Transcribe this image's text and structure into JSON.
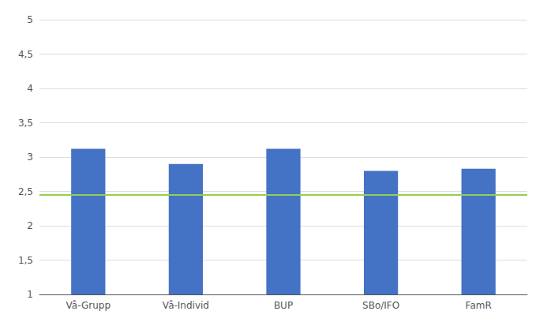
{
  "chart_data": {
    "type": "bar",
    "categories": [
      "Vå-Grupp",
      "Vå-Individ",
      "BUP",
      "SBo/IFO",
      "FamR"
    ],
    "values": [
      3.12,
      2.9,
      3.12,
      2.8,
      2.83
    ],
    "color": "#4472C4",
    "reference_line": {
      "y": 2.45,
      "color": "#92D050"
    },
    "ylim": [
      1,
      5
    ],
    "yticks": [
      1,
      {
        "value": 1.5,
        "label": "1,5"
      },
      2,
      {
        "value": 2.5,
        "label": "2,5"
      },
      3,
      {
        "value": 3.5,
        "label": "3,5"
      },
      4,
      {
        "value": 4.5,
        "label": "4,5"
      },
      5
    ],
    "grid": true
  }
}
